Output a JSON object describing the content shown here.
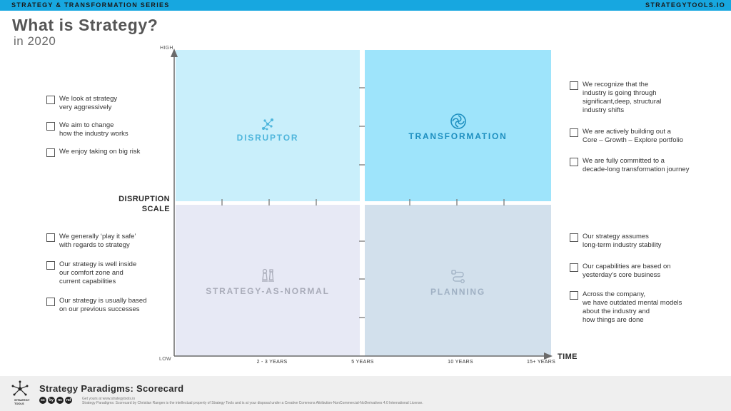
{
  "header": {
    "series": "STRATEGY & TRANSFORMATION SERIES",
    "site": "STRATEGYTOOLS.IO"
  },
  "title": "What is Strategy?",
  "subtitle": "in 2020",
  "axes": {
    "y_high": "HIGH",
    "y_low": "LOW",
    "y_title": "DISRUPTION\nSCALE",
    "x_title": "TIME",
    "x_ticks": [
      "2 - 3 YEARS",
      "5 YEARS",
      "10 YEARS",
      "15+ YEARS"
    ]
  },
  "quadrants": {
    "top_left": {
      "label": "DISRUPTOR",
      "icon": "network-icon"
    },
    "top_right": {
      "label": "TRANSFORMATION",
      "icon": "swirl-icon"
    },
    "bottom_left": {
      "label": "STRATEGY-AS-NORMAL",
      "icon": "chess-icon"
    },
    "bottom_right": {
      "label": "PLANNING",
      "icon": "route-icon"
    }
  },
  "checklists": {
    "disruptor": [
      "We look at strategy\nvery aggressively",
      "We aim to change\nhow the industry works",
      "We enjoy taking on big risk"
    ],
    "transformation": [
      "We recognize that the\nindustry is going through\nsignificant,deep, structural\nindustry shifts",
      "We are actively building out a\nCore – Growth – Explore portfolio",
      "We are fully committed to a\ndecade-long transformation journey"
    ],
    "normal": [
      "We generally ‘play it safe’\nwith regards to strategy",
      "Our strategy is well inside\nour comfort zone and\ncurrent capabilities",
      "Our strategy is usually based\non our previous successes"
    ],
    "planning": [
      "Our strategy assumes\nlong-term industry stability",
      "Our capabilities are based on\nyesterday’s core business",
      "Across the company,\nwe have outdated mental models\nabout the industry and\nhow things are done"
    ]
  },
  "footer": {
    "title": "Strategy Paradigms: Scorecard",
    "url_line": "Get yours at www.strategytools.io",
    "license": "Strategy Paradigms: Scorecard by Christian Rangen is the intellectual property of Strategy Tools and is at your disposal under a Creative Commons Attribution-NonCommercial-NoDerivatives 4.0 International License.",
    "logo_text": "STRATEGY\nTOOLS",
    "cc_icons": [
      "cc",
      "by",
      "nc",
      "nd"
    ]
  },
  "colors": {
    "accent": "#17a7e0",
    "disruptor_bg": "#c9effb",
    "transformation_bg": "#9ee4fb",
    "normal_bg": "#e7e9f5",
    "planning_bg": "#d2e0ec"
  }
}
